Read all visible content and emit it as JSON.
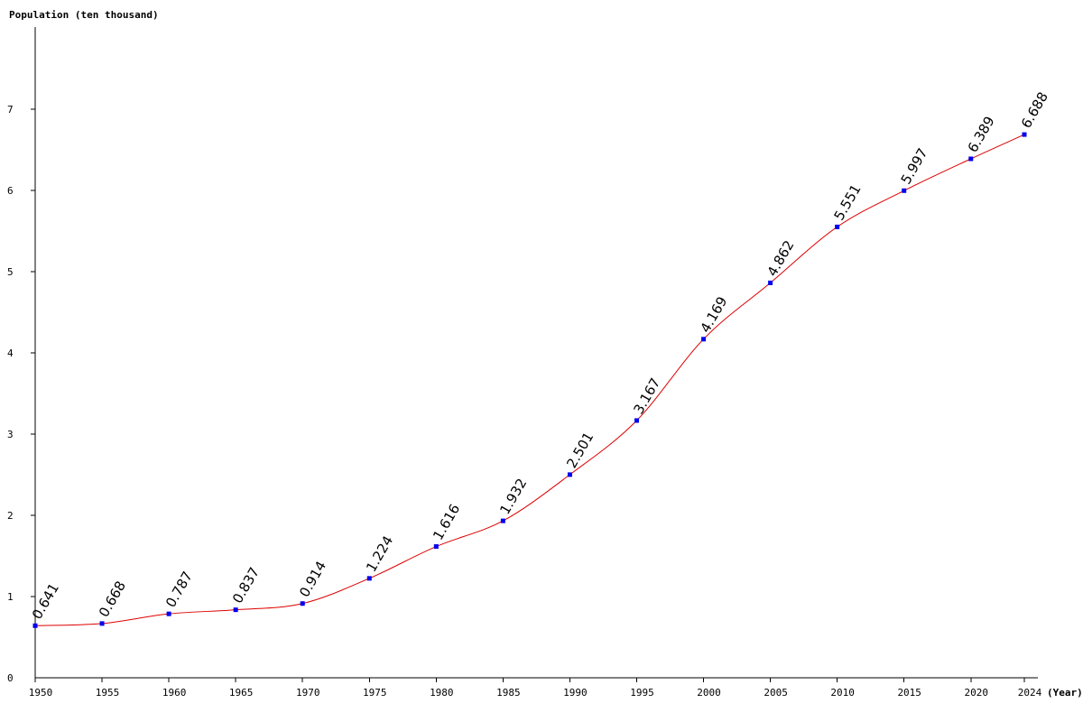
{
  "chart_data": {
    "type": "line",
    "title": "",
    "ylabel": "Population (ten thousand)",
    "xlabel": "(Year)",
    "x": [
      1950,
      1955,
      1960,
      1965,
      1970,
      1975,
      1980,
      1985,
      1990,
      1995,
      2000,
      2005,
      2010,
      2015,
      2020,
      2024
    ],
    "x_tick_labels": [
      "1950",
      "1955",
      "1960",
      "1965",
      "1970",
      "1975",
      "1980",
      "1985",
      "1990",
      "1995",
      "2000",
      "2005",
      "2010",
      "2015",
      "2020",
      "2024"
    ],
    "y_tick_labels": [
      "0",
      "1",
      "2",
      "3",
      "4",
      "5",
      "6",
      "7"
    ],
    "series": [
      {
        "values": [
          0.641,
          0.668,
          0.787,
          0.837,
          0.914,
          1.224,
          1.616,
          1.932,
          2.501,
          3.167,
          4.169,
          4.862,
          5.551,
          5.997,
          6.389,
          6.688
        ],
        "labels": [
          "0.641",
          "0.668",
          "0.787",
          "0.837",
          "0.914",
          "1.224",
          "1.616",
          "1.932",
          "2.501",
          "3.167",
          "4.169",
          "4.862",
          "5.551",
          "5.997",
          "6.389",
          "6.688"
        ],
        "color": "#dd0000",
        "marker_color": "#0000ee"
      }
    ],
    "xlim": [
      1950,
      2024
    ],
    "ylim": [
      0,
      8
    ],
    "grid": false,
    "legend": "none"
  }
}
